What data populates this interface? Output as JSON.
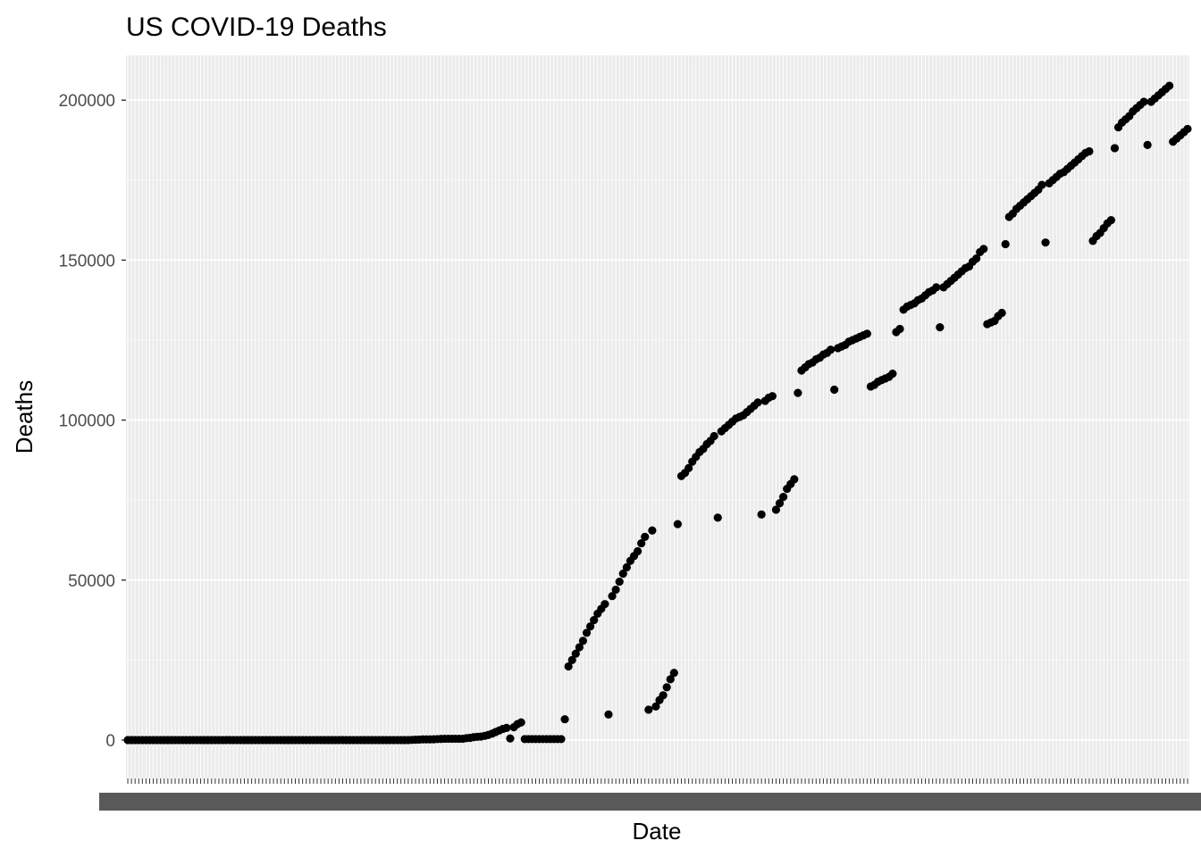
{
  "chart_data": {
    "type": "scatter",
    "title": "US COVID-19 Deaths",
    "xlabel": "Date",
    "ylabel": "Deaths",
    "ylim": [
      -12000,
      214000
    ],
    "yticks": [
      0,
      50000,
      100000,
      150000,
      200000
    ],
    "ytick_labels": [
      "0",
      "50000",
      "100000",
      "150000",
      "200000"
    ],
    "x_axis": "categorical (one date category per point, tick labels overlapping and illegible)",
    "grid": true,
    "background": "#ebebeb",
    "gridline_color": "#ffffff",
    "point_color": "#000000",
    "legend": "none",
    "values": [
      0,
      0,
      0,
      0,
      0,
      0,
      0,
      0,
      0,
      0,
      0,
      0,
      0,
      0,
      0,
      0,
      0,
      0,
      0,
      0,
      0,
      0,
      0,
      0,
      0,
      0,
      0,
      0,
      0,
      0,
      0,
      0,
      0,
      0,
      0,
      0,
      0,
      0,
      0,
      0,
      0,
      0,
      0,
      0,
      0,
      0,
      0,
      0,
      0,
      0,
      0,
      0,
      0,
      0,
      0,
      0,
      0,
      0,
      0,
      0,
      0,
      0,
      0,
      0,
      0,
      0,
      0,
      0,
      0,
      0,
      0,
      0,
      0,
      0,
      0,
      0,
      0,
      0,
      50,
      100,
      150,
      200,
      200,
      200,
      250,
      300,
      350,
      400,
      400,
      400,
      400,
      400,
      400,
      600,
      700,
      900,
      1000,
      1100,
      1300,
      1600,
      2000,
      2500,
      3000,
      3500,
      3800,
      500,
      4000,
      5000,
      5500,
      300,
      300,
      300,
      300,
      300,
      300,
      300,
      300,
      300,
      300,
      300,
      6500,
      23000,
      25000,
      27000,
      29000,
      31000,
      33500,
      35500,
      37500,
      39500,
      41000,
      42500,
      8000,
      45000,
      47000,
      49500,
      52000,
      54000,
      56000,
      57500,
      59000,
      61500,
      63500,
      9500,
      65500,
      10500,
      12500,
      14000,
      16500,
      19000,
      21000,
      67500,
      82500,
      83500,
      85000,
      87000,
      88500,
      90000,
      91000,
      92500,
      93500,
      95000,
      69500,
      96500,
      97500,
      98500,
      99500,
      100500,
      101000,
      101500,
      102500,
      103500,
      104500,
      105500,
      70500,
      106000,
      107000,
      107500,
      72000,
      74000,
      76000,
      78500,
      80000,
      81500,
      108500,
      115500,
      116500,
      117500,
      118000,
      119000,
      119500,
      120500,
      121000,
      122000,
      109500,
      122500,
      123000,
      123500,
      124500,
      125000,
      125500,
      126000,
      126500,
      127000,
      110500,
      111000,
      112000,
      112500,
      113000,
      113500,
      114500,
      127500,
      128500,
      134500,
      135500,
      136000,
      136500,
      137500,
      138000,
      139000,
      140000,
      140500,
      141500,
      129000,
      141500,
      142500,
      143500,
      144500,
      145500,
      146500,
      147500,
      148000,
      149500,
      150500,
      152500,
      153500,
      130000,
      130500,
      131000,
      132500,
      133500,
      155000,
      163500,
      164500,
      166000,
      167000,
      168000,
      169000,
      170000,
      171000,
      172000,
      173500,
      155500,
      174000,
      175000,
      176000,
      177000,
      177500,
      178500,
      179500,
      180500,
      181500,
      182500,
      183500,
      184000,
      156000,
      157500,
      158500,
      160000,
      161500,
      162500,
      185000,
      191500,
      193000,
      194000,
      195000,
      196500,
      197500,
      198500,
      199500,
      186000,
      199500,
      200500,
      201500,
      202500,
      203500,
      204500,
      187000,
      188000,
      189000,
      190000,
      191000
    ]
  }
}
